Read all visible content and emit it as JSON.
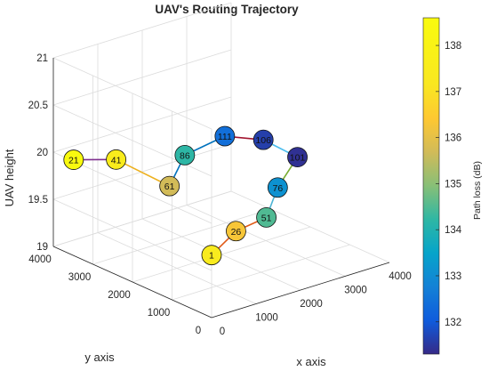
{
  "chart_data": {
    "type": "line3d",
    "title": "UAV's Routing Trajectory",
    "xlabel": "x axis",
    "ylabel": "y axis",
    "zlabel": "UAV height",
    "colorbar_label": "Path loss (dB)",
    "xlim": [
      0,
      4000
    ],
    "ylim": [
      0,
      4000
    ],
    "zlim": [
      19,
      21
    ],
    "xticks": [
      "0",
      "1000",
      "2000",
      "3000",
      "4000"
    ],
    "yticks": [
      "0",
      "1000",
      "2000",
      "3000",
      "4000"
    ],
    "zticks": [
      "19",
      "19.5",
      "20",
      "20.5",
      "21"
    ],
    "colorbar_ticks": [
      "132",
      "133",
      "134",
      "135",
      "136",
      "137",
      "138"
    ],
    "colorbar_range": [
      131.3,
      138.6
    ],
    "grid": true,
    "points": [
      {
        "label": "1",
        "x": 400,
        "y": 450,
        "z": 19.52,
        "path_loss": 137.4
      },
      {
        "label": "26",
        "x": 1350,
        "y": 900,
        "z": 19.55,
        "path_loss": 136.3
      },
      {
        "label": "51",
        "x": 2300,
        "y": 1200,
        "z": 19.5,
        "path_loss": 134.5
      },
      {
        "label": "76",
        "x": 3000,
        "y": 1700,
        "z": 19.62,
        "path_loss": 133.1
      },
      {
        "label": "101",
        "x": 3800,
        "y": 2100,
        "z": 19.75,
        "path_loss": 131.4
      },
      {
        "label": "106",
        "x": 3300,
        "y": 2400,
        "z": 19.95,
        "path_loss": 131.6
      },
      {
        "label": "111",
        "x": 2700,
        "y": 2700,
        "z": 20.02,
        "path_loss": 132.4
      },
      {
        "label": "86",
        "x": 1800,
        "y": 2700,
        "z": 19.95,
        "path_loss": 134.2
      },
      {
        "label": "61",
        "x": 1100,
        "y": 2300,
        "z": 19.8,
        "path_loss": 135.7
      },
      {
        "label": "41",
        "x": 700,
        "y": 3200,
        "z": 19.97,
        "path_loss": 137.5
      },
      {
        "label": "21",
        "x": 100,
        "y": 3600,
        "z": 19.98,
        "path_loss": 138.5
      }
    ],
    "segment_colors": [
      "#e05a17",
      "#e05a17",
      "#4cb3d4",
      "#77ac30",
      "#4dbeee",
      "#a2142f",
      "#0072bd",
      "#0072bd",
      "#edb120",
      "#7e2f8e"
    ]
  }
}
